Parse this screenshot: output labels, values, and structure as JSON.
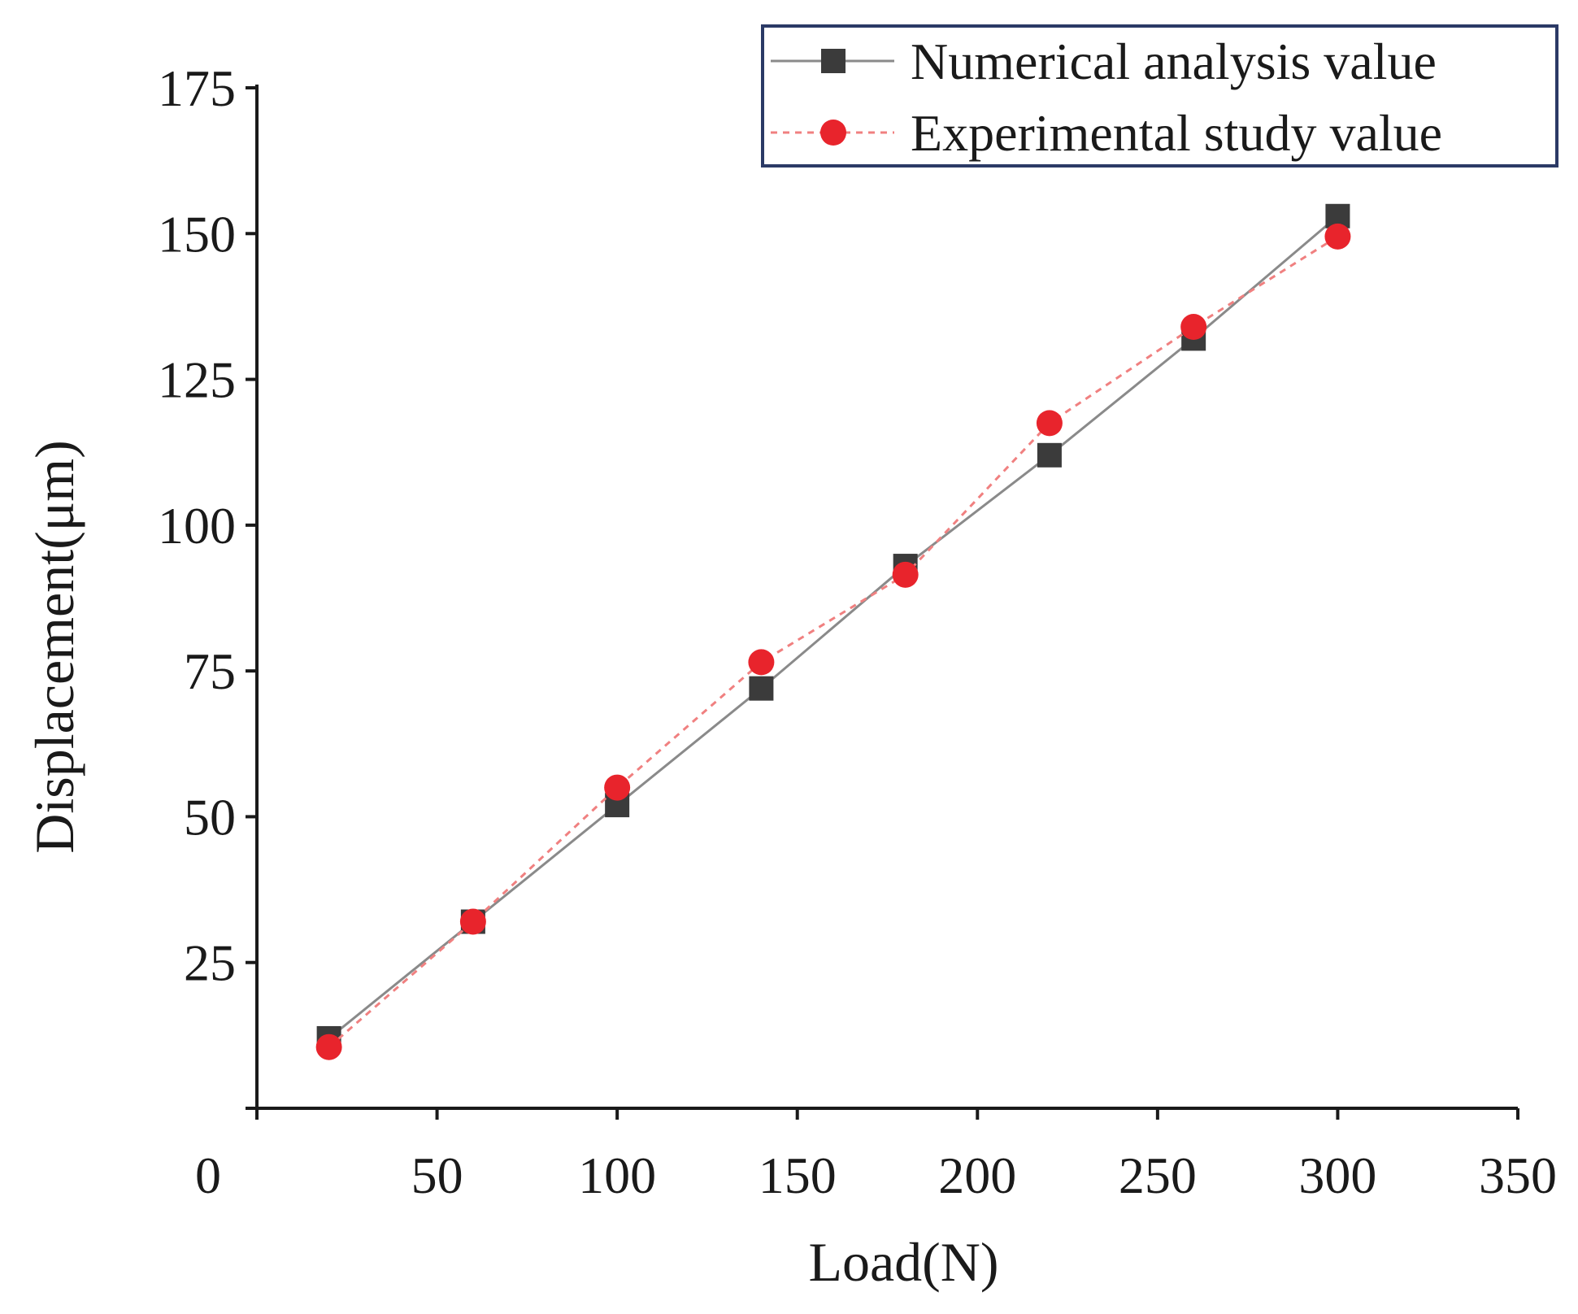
{
  "chart_data": {
    "type": "line",
    "title": "",
    "xlabel": "Load(N)",
    "ylabel": "Displacement(μm)",
    "xlim": [
      0,
      350
    ],
    "ylim": [
      0,
      175
    ],
    "xticks": [
      0,
      50,
      100,
      150,
      200,
      250,
      300,
      350
    ],
    "yticks": [
      25,
      50,
      75,
      100,
      125,
      150,
      175
    ],
    "grid": false,
    "legend_position": "top-right",
    "x": [
      20,
      60,
      100,
      140,
      180,
      220,
      260,
      300
    ],
    "series": [
      {
        "name": "Numerical analysis value",
        "marker": "square",
        "line_style": "solid",
        "line_color": "#8a8a8a",
        "marker_color": "#3b3b3b",
        "values": [
          12,
          32,
          52,
          72,
          93,
          112,
          132,
          153
        ]
      },
      {
        "name": "Experimental study value",
        "marker": "circle",
        "line_style": "dotted",
        "line_color": "#f08080",
        "marker_color": "#e8242c",
        "values": [
          10.5,
          32,
          55,
          76.5,
          91.5,
          117.5,
          134,
          149.5
        ]
      }
    ]
  }
}
